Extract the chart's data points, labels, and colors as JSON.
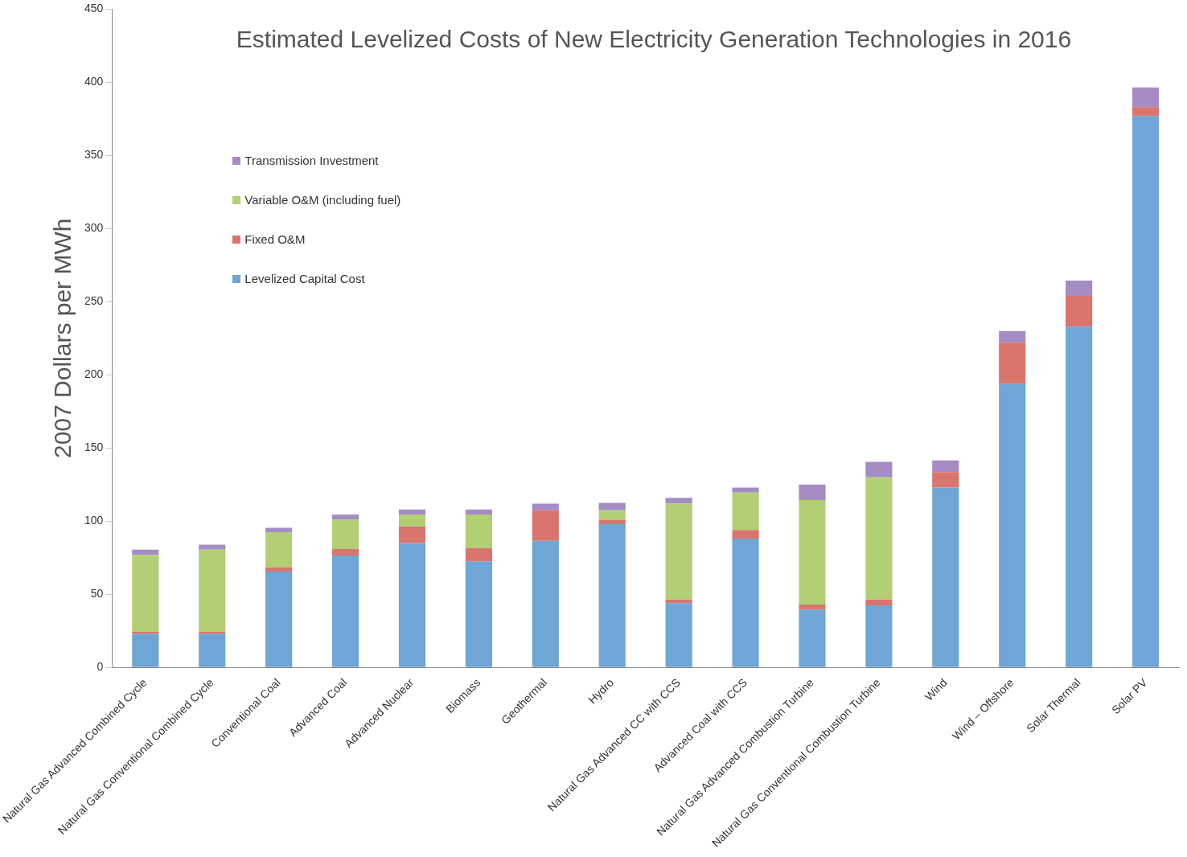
{
  "chart_data": {
    "type": "bar",
    "stacked": true,
    "title": "Estimated Levelized Costs of New Electricity Generation Technologies in 2016",
    "ylabel": "2007 Dollars per MWh",
    "categories": [
      "Natural Gas Advanced Combined Cycle",
      "Natural Gas Conventional Combined Cycle",
      "Conventional Coal",
      "Advanced Coal",
      "Advanced Nuclear",
      "Biomass",
      "Geothermal",
      "Hydro",
      "Natural Gas Advanced CC with CCS",
      "Advanced Coal with CCS",
      "Natural Gas Advanced Combustion Turbine",
      "Natural Gas Conventional Combustion Turbine",
      "Wind",
      "Wind – Offshore",
      "Solar Thermal",
      "Solar PV"
    ],
    "series": [
      {
        "name": "Levelized Capital Cost",
        "color": "#6fa6d6",
        "values": [
          23,
          23,
          65.5,
          76.5,
          85,
          72.5,
          86.5,
          98,
          44,
          88,
          39.5,
          42.5,
          123,
          194,
          233,
          377
        ]
      },
      {
        "name": "Fixed O&M",
        "color": "#d9756c",
        "values": [
          1.5,
          1.5,
          3,
          4.5,
          11.5,
          9,
          21,
          3,
          2.5,
          6,
          3.5,
          4,
          10.5,
          28,
          21,
          6
        ]
      },
      {
        "name": "Variable O&M (including fuel)",
        "color": "#b3cf74",
        "values": [
          52.5,
          56,
          24,
          20,
          8,
          23,
          0,
          6.5,
          65.5,
          25.5,
          71.5,
          83.5,
          0,
          0,
          0,
          0
        ]
      },
      {
        "name": "Transmission Investment",
        "color": "#a58cc4",
        "values": [
          3.5,
          3.5,
          3,
          3.5,
          3.5,
          3.5,
          4.5,
          5,
          4,
          3.5,
          10.5,
          10.5,
          8,
          8,
          10.5,
          13.5
        ]
      }
    ],
    "ylim": [
      0,
      450
    ],
    "yticks": [
      0,
      50,
      100,
      150,
      200,
      250,
      300,
      350,
      400,
      450
    ],
    "grid": false,
    "legend": "top left"
  }
}
